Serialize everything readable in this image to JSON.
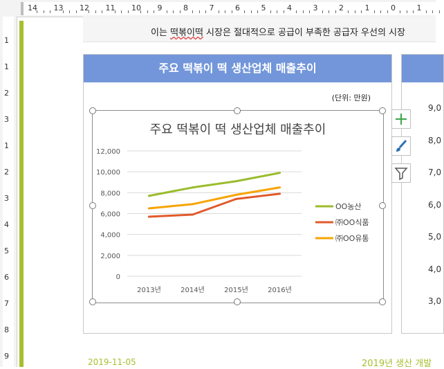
{
  "ruler": {
    "h_numbers": [
      "14",
      "13",
      "12",
      "11",
      "10",
      "9",
      "8",
      "7",
      "6",
      "5",
      "4",
      "3",
      "2",
      "1",
      "0",
      "1"
    ],
    "v_numbers": [
      "1",
      "1",
      "2",
      "3",
      "1",
      "2",
      "3",
      "4",
      "5",
      "6",
      "7",
      "8",
      "9"
    ]
  },
  "document": {
    "top_text_before": "이는 ",
    "top_text_marked": "떡볶이떡",
    "top_text_after": " 시장은 절대적으로 공급이 부족한 공급자 우선의 시장",
    "bottom_date": "2019-11-05",
    "bottom_right_text": "2019년 생산 개발"
  },
  "card": {
    "header": "주요 떡볶이 떡 생산업체 매출추이",
    "unit_label": "(단위: 만원)"
  },
  "right_card": {
    "y_labels": [
      "9,0",
      "8,0",
      "7,0",
      "6,0",
      "5,0",
      "4,0",
      "3,0"
    ]
  },
  "side_buttons": [
    "plus-icon",
    "brush-icon",
    "filter-icon"
  ],
  "chart_data": {
    "type": "line",
    "title": "주요 떡볶이 떡 생산업체 매출추이",
    "categories": [
      "2013년",
      "2014년",
      "2015년",
      "2016년"
    ],
    "y_ticks": [
      "12,000",
      "10,000",
      "8,000",
      "6,000",
      "4,000",
      "2,000",
      "0"
    ],
    "ylim": [
      0,
      12000
    ],
    "grid": true,
    "legend_position": "right",
    "series": [
      {
        "name": "OO농산",
        "color": "#9bbb2c",
        "values": [
          7700,
          8500,
          9100,
          9900
        ]
      },
      {
        "name": "㈜OO식품",
        "color": "#e05a2b",
        "values": [
          5700,
          5900,
          7400,
          7900
        ]
      },
      {
        "name": "㈜OO유통",
        "color": "#f7a400",
        "values": [
          6500,
          6900,
          7800,
          8500
        ]
      }
    ]
  }
}
